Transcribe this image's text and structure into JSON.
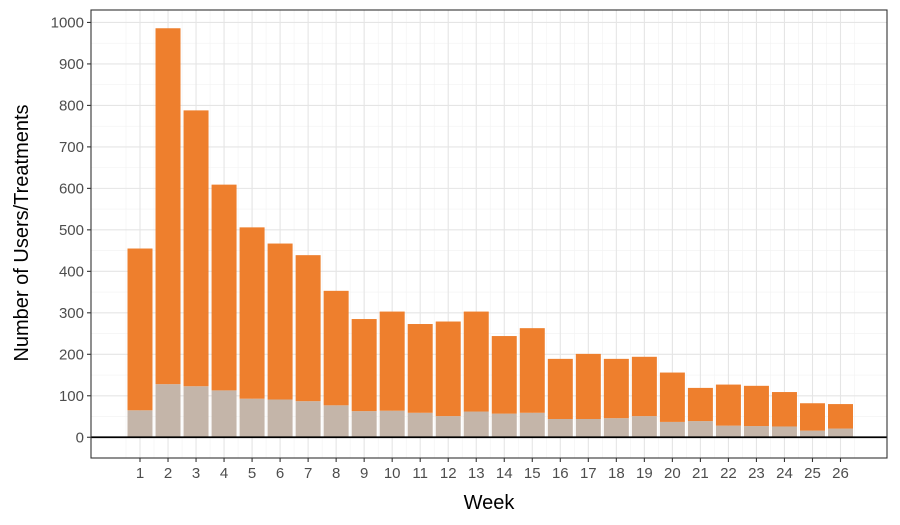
{
  "chart_data": {
    "type": "bar",
    "stacked": true,
    "xlabel": "Week",
    "ylabel": "Number of Users/Treatments",
    "ylim": [
      -50,
      1030
    ],
    "yticks": [
      0,
      100,
      200,
      300,
      400,
      500,
      600,
      700,
      800,
      900,
      1000
    ],
    "categories": [
      "1",
      "2",
      "3",
      "4",
      "5",
      "6",
      "7",
      "8",
      "9",
      "10",
      "11",
      "12",
      "13",
      "14",
      "15",
      "16",
      "17",
      "18",
      "19",
      "20",
      "21",
      "22",
      "23",
      "24",
      "25",
      "26"
    ],
    "series": [
      {
        "color": "#c4b5a9",
        "values": [
          65,
          128,
          123,
          113,
          93,
          91,
          87,
          77,
          63,
          64,
          59,
          51,
          62,
          57,
          59,
          44,
          44,
          46,
          51,
          37,
          39,
          28,
          27,
          26,
          16,
          21
        ]
      },
      {
        "color": "#ee7f2d",
        "values": [
          390,
          858,
          665,
          496,
          413,
          376,
          352,
          276,
          222,
          239,
          214,
          228,
          241,
          187,
          204,
          145,
          157,
          143,
          143,
          119,
          80,
          99,
          97,
          83,
          66,
          59
        ]
      }
    ],
    "totals": [
      455,
      986,
      788,
      609,
      506,
      467,
      439,
      353,
      285,
      303,
      273,
      279,
      303,
      244,
      263,
      189,
      201,
      189,
      194,
      156,
      119,
      127,
      124,
      109,
      82,
      80
    ],
    "zero_line": true,
    "grid": true,
    "legend": "none",
    "colors": {
      "panel_border": "#333333",
      "zero_line": "#000000"
    }
  }
}
